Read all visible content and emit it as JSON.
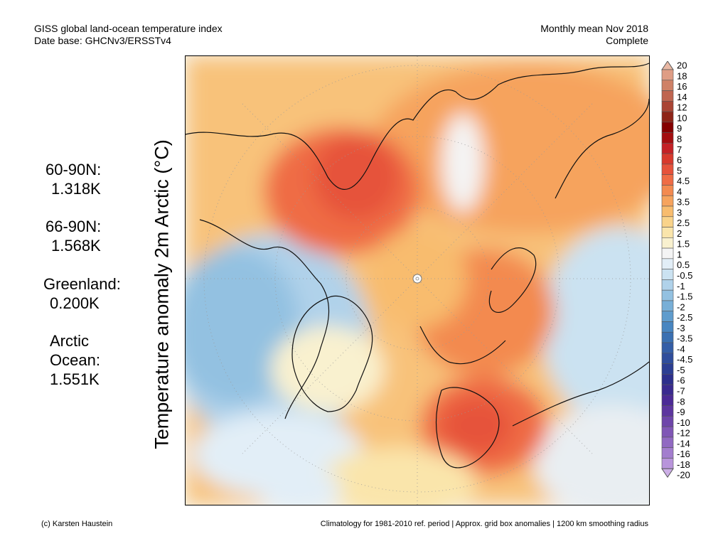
{
  "header": {
    "line1": "GISS global land-ocean temperature index",
    "line2": "Date base: GHCNv3/ERSSTv4",
    "period": "Monthly mean Nov 2018",
    "status": "Complete"
  },
  "axis_label": "Temperature anomaly 2m Arctic (°C)",
  "stats": [
    {
      "label": "60-90N:",
      "value": "1.318K"
    },
    {
      "label": "66-90N:",
      "value": "1.568K"
    },
    {
      "label": "Greenland:",
      "value": "0.200K"
    },
    {
      "label": "Arctic",
      "label2": "Ocean:",
      "value": "1.551K"
    }
  ],
  "colorbar": {
    "labels": [
      "20",
      "18",
      "16",
      "14",
      "12",
      "10",
      "9",
      "8",
      "7",
      "6",
      "5",
      "4.5",
      "4",
      "3.5",
      "3",
      "2.5",
      "2",
      "1.5",
      "1",
      "0.5",
      "-0.5",
      "-1",
      "-1.5",
      "-2",
      "-2.5",
      "-3",
      "-3.5",
      "-4",
      "-4.5",
      "-5",
      "-6",
      "-7",
      "-8",
      "-9",
      "-10",
      "-12",
      "-14",
      "-16",
      "-18",
      "-20"
    ],
    "colors": [
      "#e9b8a4",
      "#df9d85",
      "#cf8167",
      "#bf6550",
      "#aa4434",
      "#8e2417",
      "#850000",
      "#a40d0f",
      "#c42126",
      "#d8392d",
      "#e6523b",
      "#ef6c45",
      "#f38a50",
      "#f6a35d",
      "#f8bc6e",
      "#f9d38a",
      "#fae5ab",
      "#f9f1cf",
      "#f4f4f4",
      "#e2eef7",
      "#cbe2f1",
      "#b0d2ea",
      "#93c1e1",
      "#78afd7",
      "#5f9ccd",
      "#4886c1",
      "#3a70b2",
      "#345ea7",
      "#2f4d9c",
      "#2c3e93",
      "#2d2f8c",
      "#3a2a8f",
      "#4c2a96",
      "#5d359f",
      "#6e45aa",
      "#8056b6",
      "#9169c2",
      "#a37dce",
      "#b894db",
      "#ccaee6"
    ]
  },
  "footer": {
    "credit": "(c) Karsten Haustein",
    "note": "Climatology for 1981-2010 ref. period | Approx. grid box anomalies | 1200 km smoothing radius"
  }
}
